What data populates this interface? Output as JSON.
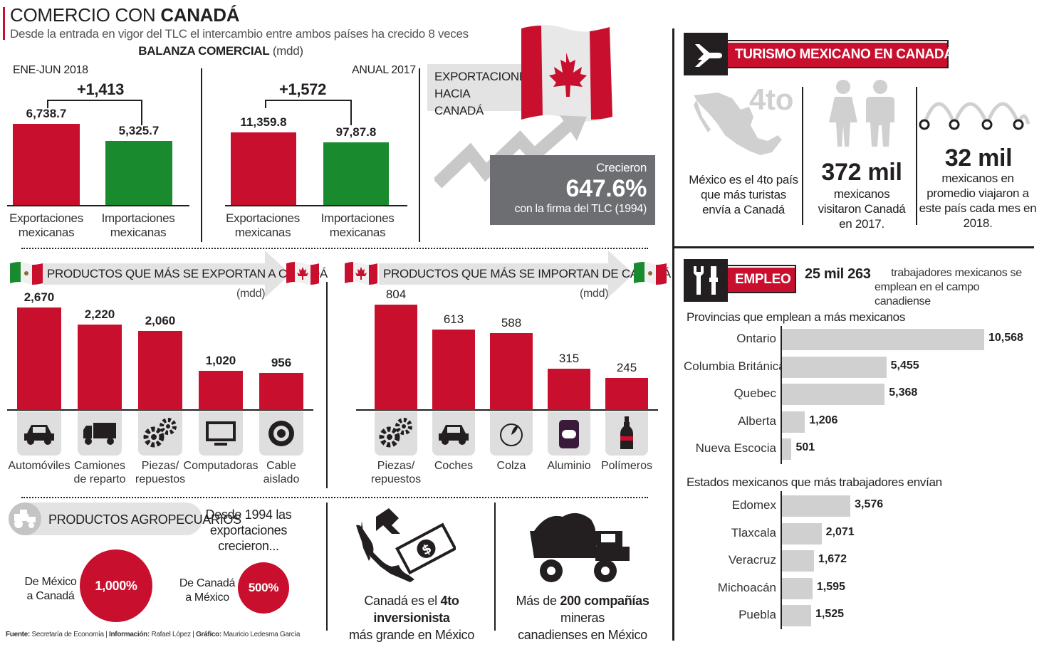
{
  "header": {
    "title_light": "COMERCIO CON ",
    "title_bold": "CANADÁ",
    "subtitle": "Desde la entrada en vigor del TLC el intercambio entre ambos países ha crecido 8 veces"
  },
  "balanza": {
    "title": "BALANZA COMERCIAL",
    "unit": "(mdd)",
    "left_period": "ENE-JUN 2018",
    "left_diff": "+1,413",
    "right_period": "ANUAL 2017",
    "right_diff": "+1,572",
    "cat_exp_1": "Exportaciones",
    "cat_exp_2": "mexicanas",
    "cat_imp_1": "Importaciones",
    "cat_imp_2": "mexicanas",
    "colors": {
      "export": "#c8102e",
      "import": "#1a8a2e"
    }
  },
  "exportaciones_canada": {
    "label_1": "EXPORTACIONES",
    "label_2": "HACIA CANADÁ",
    "grew": "Crecieron",
    "percent": "647.6%",
    "note": "con la firma del TLC (1994)"
  },
  "exportan": {
    "title": "PRODUCTOS QUE MÁS SE EXPORTAN A CANADÁ",
    "unit": "(mdd)",
    "items": [
      {
        "label_1": "Automóviles",
        "label_2": "",
        "icon": "car-icon"
      },
      {
        "label_1": "Camiones",
        "label_2": "de reparto",
        "icon": "truck-icon"
      },
      {
        "label_1": "Piezas/",
        "label_2": "repuestos",
        "icon": "gears-icon"
      },
      {
        "label_1": "Computadoras",
        "label_2": "",
        "icon": "monitor-icon"
      },
      {
        "label_1": "Cable",
        "label_2": "aislado",
        "icon": "cable-icon"
      }
    ]
  },
  "importan": {
    "title": "PRODUCTOS QUE MÁS SE IMPORTAN DE CANADÁ",
    "unit": "(mdd)",
    "items": [
      {
        "label_1": "Piezas/",
        "label_2": "repuestos",
        "icon": "gears-icon"
      },
      {
        "label_1": "Coches",
        "label_2": "",
        "icon": "car-icon"
      },
      {
        "label_1": "Colza",
        "label_2": "",
        "icon": "seed-icon"
      },
      {
        "label_1": "Aluminio",
        "label_2": "",
        "icon": "can-icon"
      },
      {
        "label_1": "Polímeros",
        "label_2": "",
        "icon": "bottle-icon"
      }
    ]
  },
  "agro": {
    "title": "PRODUCTOS AGROPECUARIOS",
    "desc_1": "Desde 1994 las",
    "desc_2": "exportaciones",
    "desc_3": "crecieron...",
    "mx_ca_1": "De México",
    "mx_ca_2": "a Canadá",
    "mx_ca_value": "1,000%",
    "ca_mx_1": "De Canadá",
    "ca_mx_2": "a México",
    "ca_mx_value": "500%"
  },
  "inversion": {
    "text_pre": "Canadá es el ",
    "text_bold": "4to inversionista",
    "text_post": "más grande en México"
  },
  "mineras": {
    "text_pre": "Más de ",
    "text_bold": "200 compañías",
    "text_mid": " mineras",
    "text_post": "canadienses en México"
  },
  "turismo": {
    "title": "TURISMO MEXICANO EN CANADÁ",
    "rank": "4to",
    "rank_text_1": "México es el 4to país",
    "rank_text_2": "que más turistas",
    "rank_text_3": "envía a Canadá",
    "visitors": "372 mil",
    "visitors_text_1": "mexicanos",
    "visitors_text_2": "visitaron Canadá",
    "visitors_text_3": "en 2017.",
    "monthly": "32 mil",
    "monthly_text_1": "mexicanos en",
    "monthly_text_2": "promedio viajaron a",
    "monthly_text_3": "este país cada mes en",
    "monthly_text_4": "2018."
  },
  "empleo": {
    "title": "EMPLEO",
    "workers": "25 mil 263",
    "workers_text_1": "trabajadores mexicanos se",
    "workers_text_2": "emplean en el campo canadiense",
    "provinces_title": "Provincias que emplean a más mexicanos",
    "states_title": "Estados mexicanos que más trabajadores envían"
  },
  "footer": {
    "fuente_label": "Fuente:",
    "fuente": "Secretaría de Economía",
    "info_label": "Información:",
    "info": "Rafael López",
    "grafico_label": "Gráfico:",
    "grafico": "Mauricio Ledesma García"
  },
  "chart_data": [
    {
      "type": "bar",
      "id": "balanza_2018",
      "title": "ENE-JUN 2018",
      "categories": [
        "Exportaciones mexicanas",
        "Importaciones mexicanas"
      ],
      "values": [
        6738.7,
        5325.7
      ],
      "labels": [
        "6,738.7",
        "5,325.7"
      ]
    },
    {
      "type": "bar",
      "id": "balanza_2017",
      "title": "ANUAL 2017",
      "categories": [
        "Exportaciones mexicanas",
        "Importaciones mexicanas"
      ],
      "values": [
        11359.8,
        9787.8
      ],
      "labels": [
        "11,359.8",
        "97,87.8"
      ]
    },
    {
      "type": "bar",
      "id": "exportan",
      "title": "PRODUCTOS QUE MÁS SE EXPORTAN A CANADÁ",
      "ylabel": "(mdd)",
      "categories": [
        "Automóviles",
        "Camiones de reparto",
        "Piezas/ repuestos",
        "Computadoras",
        "Cable aislado"
      ],
      "values": [
        2670,
        2220,
        2060,
        1020,
        956
      ],
      "labels": [
        "2,670",
        "2,220",
        "2,060",
        "1,020",
        "956"
      ]
    },
    {
      "type": "bar",
      "id": "importan",
      "title": "PRODUCTOS QUE MÁS SE IMPORTAN DE CANADÁ",
      "ylabel": "(mdd)",
      "categories": [
        "Piezas/ repuestos",
        "Coches",
        "Colza",
        "Aluminio",
        "Polímeros"
      ],
      "values": [
        804,
        613,
        588,
        315,
        245
      ],
      "labels": [
        "804",
        "613",
        "588",
        "315",
        "245"
      ]
    },
    {
      "type": "bar",
      "id": "provincias",
      "title": "Provincias que emplean a más mexicanos",
      "categories": [
        "Ontario",
        "Columbia Británica",
        "Quebec",
        "Alberta",
        "Nueva Escocia"
      ],
      "values": [
        10568,
        5455,
        5368,
        1206,
        501
      ],
      "labels": [
        "10,568",
        "5,455",
        "5,368",
        "1,206",
        "501"
      ]
    },
    {
      "type": "bar",
      "id": "estados",
      "title": "Estados mexicanos que más trabajadores envían",
      "categories": [
        "Edomex",
        "Tlaxcala",
        "Veracruz",
        "Michoacán",
        "Puebla"
      ],
      "values": [
        3576,
        2071,
        1672,
        1595,
        1525
      ],
      "labels": [
        "3,576",
        "2,071",
        "1,672",
        "1,595",
        "1,525"
      ]
    }
  ]
}
